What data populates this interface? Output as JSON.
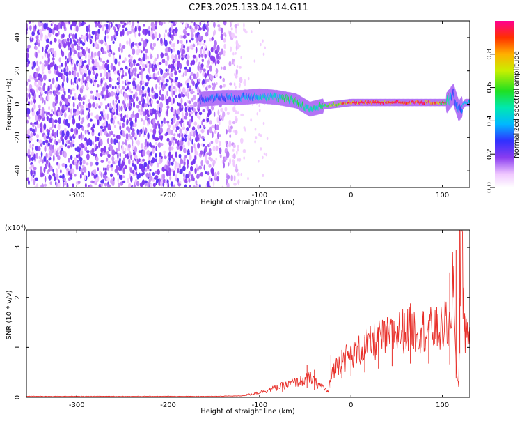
{
  "page_title": "C2E3.2025.133.04.14.G11",
  "chart_data": [
    {
      "type": "heatmap",
      "title": "C2E3.2025.133.04.14.G11",
      "xlabel": "Height of straight line (km)",
      "ylabel": "Frequency (Hz)",
      "xlim": [
        -355,
        130
      ],
      "ylim": [
        -50,
        50
      ],
      "x_ticks": [
        "-300",
        "-200",
        "-100",
        "0",
        "100"
      ],
      "x_tick_values": [
        -300,
        -200,
        -100,
        0,
        100
      ],
      "y_ticks": [
        "-40",
        "-20",
        "0",
        "20",
        "40"
      ],
      "y_tick_values": [
        -40,
        -20,
        0,
        20,
        40
      ],
      "colorbar": {
        "label": "Normalized spectral amplitude",
        "range": [
          0,
          1
        ],
        "ticks": [
          "0.0",
          "0.2",
          "0.4",
          "0.6",
          "0.8"
        ],
        "tick_values": [
          0.0,
          0.2,
          0.4,
          0.6,
          0.8
        ]
      },
      "noise_region_x": [
        -355,
        -130
      ],
      "signal_track": {
        "x": [
          -165,
          -140,
          -120,
          -100,
          -80,
          -60,
          -45,
          -30,
          -15,
          0,
          30,
          60,
          90,
          105,
          112,
          118,
          125,
          130
        ],
        "freq": [
          3,
          4,
          4,
          5,
          4,
          2,
          -3,
          -1,
          0,
          1,
          1,
          1,
          1,
          1,
          6,
          -4,
          1,
          1
        ],
        "amplitude": [
          0.3,
          0.35,
          0.35,
          0.45,
          0.5,
          0.55,
          0.5,
          0.55,
          0.75,
          0.9,
          0.95,
          0.95,
          0.95,
          0.6,
          0.3,
          0.35,
          0.4,
          0.4
        ]
      }
    },
    {
      "type": "line",
      "xlabel": "Height of straight line (km)",
      "ylabel": "SNR (10 * v/v)",
      "y_multiplier": "(x10⁴)",
      "xlim": [
        -355,
        130
      ],
      "ylim": [
        0,
        3.35
      ],
      "x_ticks": [
        "-300",
        "-200",
        "-100",
        "0",
        "100"
      ],
      "x_tick_values": [
        -300,
        -200,
        -100,
        0,
        100
      ],
      "y_ticks": [
        "0",
        "1",
        "2",
        "3"
      ],
      "y_tick_values": [
        0,
        1,
        2,
        3
      ],
      "color": "#e8302a",
      "series": [
        {
          "x": [
            -355,
            -300,
            -250,
            -200,
            -150,
            -120,
            -110,
            -100,
            -90,
            -80,
            -70,
            -60,
            -50,
            -45,
            -40,
            -35,
            -30,
            -25,
            -20,
            -10,
            0,
            10,
            20,
            30,
            40,
            50,
            60,
            70,
            80,
            90,
            100,
            105,
            110,
            112,
            114,
            116,
            118,
            120,
            125,
            130
          ],
          "y": [
            0.02,
            0.02,
            0.02,
            0.02,
            0.02,
            0.03,
            0.06,
            0.1,
            0.15,
            0.2,
            0.25,
            0.3,
            0.35,
            0.4,
            0.3,
            0.25,
            0.2,
            0.1,
            0.55,
            0.75,
            0.85,
            0.95,
            1.05,
            1.15,
            1.2,
            1.3,
            1.35,
            1.35,
            1.35,
            1.35,
            1.35,
            1.5,
            1.2,
            2.8,
            1.0,
            0.5,
            0.2,
            3.3,
            1.3,
            1.28
          ]
        }
      ],
      "spikes": [
        {
          "x": -95,
          "y": 0.22
        },
        {
          "x": -75,
          "y": 0.3
        },
        {
          "x": -60,
          "y": 0.45
        },
        {
          "x": -48,
          "y": 0.65
        },
        {
          "x": -40,
          "y": 0.55
        },
        {
          "x": -22,
          "y": 0.85
        },
        {
          "x": -10,
          "y": 0.95
        },
        {
          "x": 0,
          "y": 1.0
        },
        {
          "x": 15,
          "y": 1.2
        },
        {
          "x": 30,
          "y": 1.4
        },
        {
          "x": 45,
          "y": 1.55
        },
        {
          "x": 65,
          "y": 1.88
        },
        {
          "x": 85,
          "y": 1.55
        },
        {
          "x": 108,
          "y": 2.5
        },
        {
          "x": 115,
          "y": 2.95
        },
        {
          "x": 119,
          "y": 3.35
        }
      ]
    }
  ]
}
